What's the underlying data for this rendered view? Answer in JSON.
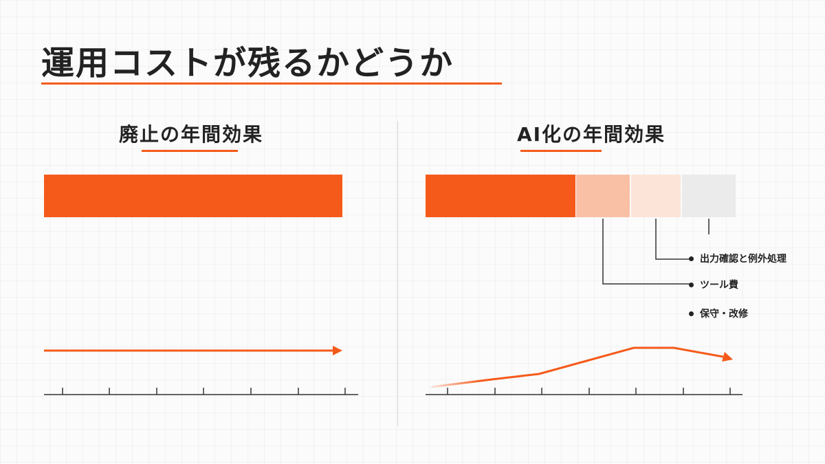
{
  "title": "運用コストが残るかどうか",
  "panels": {
    "left": {
      "heading": "廃止の年間効果"
    },
    "right": {
      "heading": "AI化の年間効果"
    }
  },
  "legend": [
    {
      "label": "出力確認と例外処理"
    },
    {
      "label": "ツール費"
    },
    {
      "label": "保守・改修"
    }
  ],
  "colors": {
    "accent": "#f55a1a",
    "cost_1": "#f9c0a6",
    "cost_2": "#fde4d8",
    "cost_3": "#ebebeb"
  }
}
